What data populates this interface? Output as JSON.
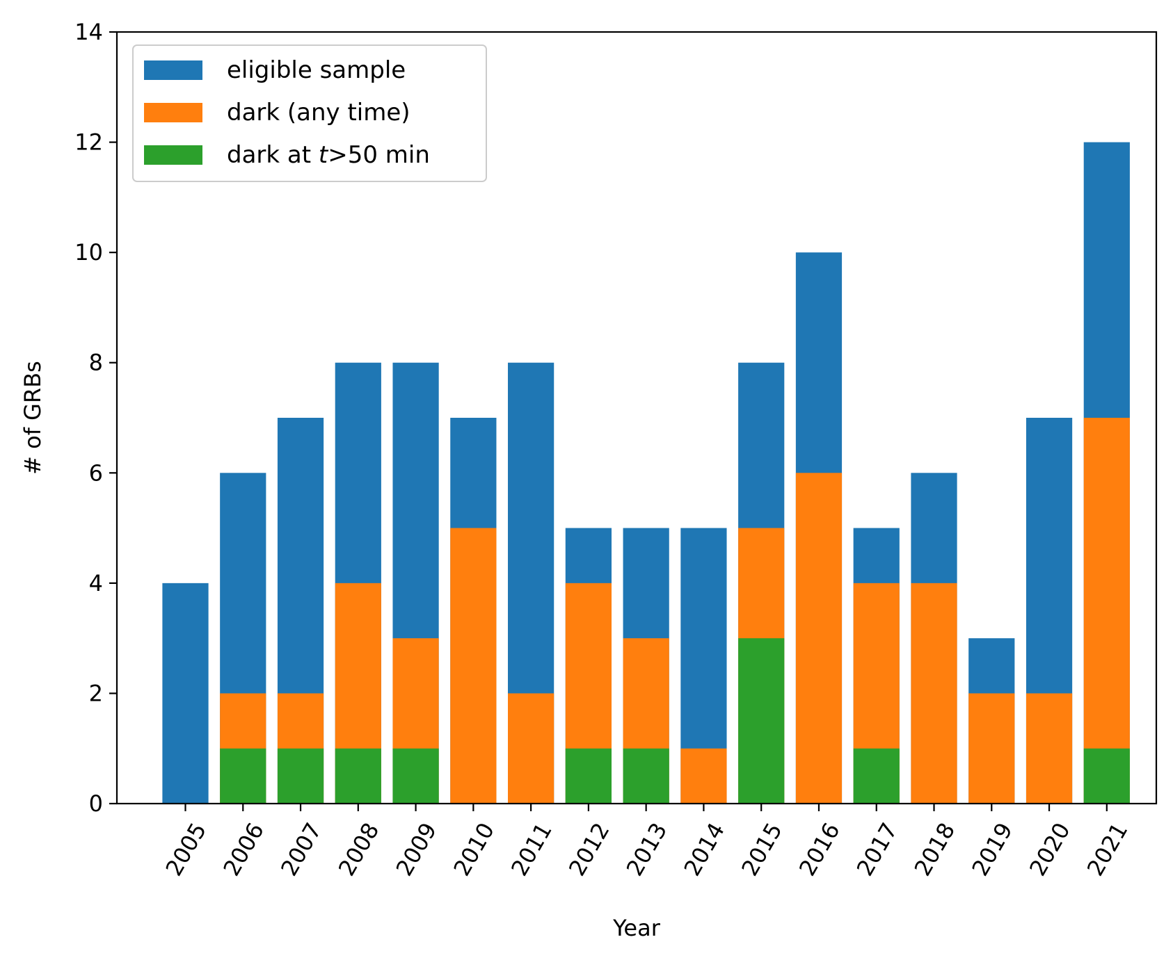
{
  "chart_data": {
    "type": "bar",
    "stacked": false,
    "overlaid": true,
    "xlabel": "Year",
    "ylabel": "# of GRBs",
    "ylim": [
      0,
      14
    ],
    "yticks": [
      0,
      2,
      4,
      6,
      8,
      10,
      12,
      14
    ],
    "categories": [
      "2005",
      "2006",
      "2007",
      "2008",
      "2009",
      "2010",
      "2011",
      "2012",
      "2013",
      "2014",
      "2015",
      "2016",
      "2017",
      "2018",
      "2019",
      "2020",
      "2021"
    ],
    "series": [
      {
        "name": "eligible sample",
        "color": "#1f77b4",
        "values": [
          4,
          6,
          7,
          8,
          8,
          7,
          8,
          5,
          5,
          5,
          8,
          10,
          5,
          6,
          3,
          7,
          12
        ]
      },
      {
        "name": "dark (any time)",
        "color": "#ff7f0e",
        "values": [
          0,
          2,
          2,
          4,
          3,
          5,
          2,
          4,
          3,
          1,
          5,
          6,
          4,
          4,
          2,
          2,
          7
        ]
      },
      {
        "name": "dark at t>50 min",
        "name_parts": [
          "dark at ",
          "t",
          ">50 min"
        ],
        "color": "#2ca02c",
        "values": [
          0,
          1,
          1,
          1,
          1,
          0,
          0,
          1,
          1,
          0,
          3,
          0,
          1,
          0,
          0,
          0,
          1
        ]
      }
    ],
    "legend_position": "top-left",
    "grid": false,
    "x_tick_rotation": -60
  }
}
